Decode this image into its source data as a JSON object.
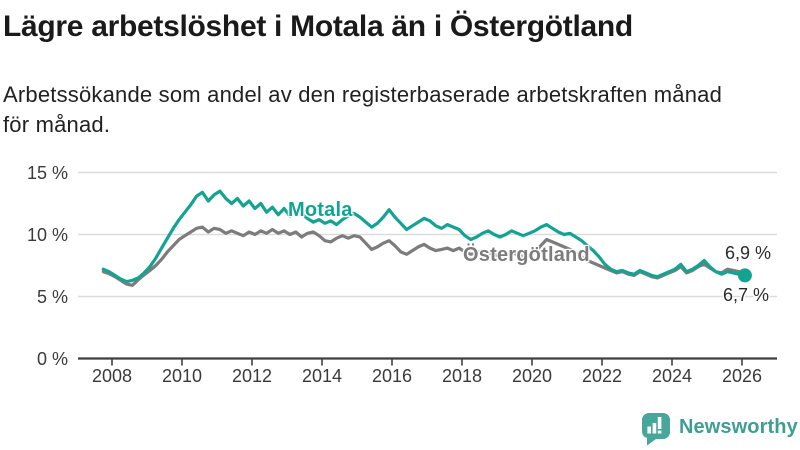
{
  "header": {
    "title": "Lägre arbetslöshet i Motala än i Östergötland",
    "subtitle_lines": [
      "Arbetssökande som andel av den registerbaserade arbetskraften månad",
      "för månad."
    ]
  },
  "chart_data": {
    "type": "line",
    "unit": "%",
    "grid": true,
    "start_year": 2007.75,
    "points_per_year": 6,
    "x_axis": {
      "ticks": [
        2008,
        2010,
        2012,
        2014,
        2016,
        2018,
        2020,
        2022,
        2024,
        2026
      ]
    },
    "y_axis": {
      "range": [
        0,
        15.5
      ],
      "ticks": [
        {
          "value": 15,
          "label": "15 %"
        },
        {
          "value": 10,
          "label": "10 %"
        },
        {
          "value": 5,
          "label": "5 %"
        },
        {
          "value": 0,
          "label": "0 %"
        }
      ]
    },
    "series": [
      {
        "name": "Motala",
        "color": "#14a392",
        "end_dot": true,
        "end_label": "6,7 %",
        "values": [
          7.2,
          7.0,
          6.7,
          6.4,
          6.2,
          6.3,
          6.5,
          6.9,
          7.4,
          8.1,
          8.9,
          9.7,
          10.5,
          11.2,
          11.8,
          12.4,
          13.1,
          13.4,
          12.7,
          13.2,
          13.5,
          12.9,
          12.5,
          12.9,
          12.3,
          12.7,
          12.1,
          12.5,
          11.8,
          12.2,
          11.6,
          12.1,
          11.5,
          12.0,
          11.7,
          11.3,
          11.0,
          11.2,
          10.9,
          11.1,
          10.8,
          11.2,
          11.5,
          11.7,
          11.4,
          11.0,
          10.6,
          10.9,
          11.4,
          12.0,
          11.4,
          10.9,
          10.4,
          10.7,
          11.0,
          11.3,
          11.1,
          10.7,
          10.5,
          10.8,
          10.6,
          10.4,
          9.9,
          9.6,
          9.8,
          10.1,
          10.3,
          10.0,
          9.8,
          10.0,
          10.3,
          10.1,
          9.9,
          10.1,
          10.3,
          10.6,
          10.8,
          10.5,
          10.2,
          10.0,
          10.1,
          9.8,
          9.5,
          9.1,
          8.7,
          8.2,
          7.6,
          7.2,
          7.0,
          7.1,
          6.9,
          6.8,
          7.1,
          6.9,
          6.7,
          6.6,
          6.8,
          7.0,
          7.2,
          7.6,
          7.0,
          7.2,
          7.5,
          7.9,
          7.4,
          7.0,
          6.8,
          7.0,
          6.9,
          6.8,
          6.7
        ]
      },
      {
        "name": "Östergötland",
        "color": "#7c7c7c",
        "end_dot": false,
        "end_label": "6,9 %",
        "values": [
          7.0,
          6.85,
          6.6,
          6.3,
          6.0,
          5.9,
          6.35,
          6.75,
          7.1,
          7.5,
          8.0,
          8.6,
          9.1,
          9.6,
          9.9,
          10.2,
          10.5,
          10.6,
          10.2,
          10.5,
          10.4,
          10.1,
          10.3,
          10.1,
          9.9,
          10.2,
          10.0,
          10.3,
          10.1,
          10.4,
          10.1,
          10.3,
          10.0,
          10.2,
          9.8,
          10.1,
          10.2,
          9.9,
          9.5,
          9.4,
          9.7,
          9.9,
          9.7,
          9.9,
          9.8,
          9.3,
          8.8,
          9.0,
          9.3,
          9.5,
          9.1,
          8.6,
          8.4,
          8.7,
          9.0,
          9.2,
          8.9,
          8.7,
          8.8,
          8.9,
          8.7,
          8.9,
          8.6,
          8.4,
          8.5,
          8.7,
          8.5,
          8.4,
          8.2,
          8.3,
          8.5,
          8.4,
          8.2,
          8.3,
          8.6,
          9.1,
          9.6,
          9.4,
          9.2,
          9.0,
          8.8,
          8.5,
          8.2,
          7.9,
          7.7,
          7.5,
          7.3,
          7.1,
          6.9,
          7.0,
          6.8,
          6.7,
          7.0,
          6.8,
          6.6,
          6.5,
          6.7,
          6.9,
          7.1,
          7.4,
          6.9,
          7.1,
          7.4,
          7.6,
          7.3,
          7.0,
          6.9,
          7.2,
          7.1,
          7.0,
          6.9
        ]
      }
    ],
    "colors": {
      "grid": "#dcdcdc",
      "axis": "#3f3f3f",
      "tick_text": "#3a3a3a"
    }
  },
  "footer": {
    "brand": "Newsworthy",
    "brand_color": "#3f9e92"
  }
}
